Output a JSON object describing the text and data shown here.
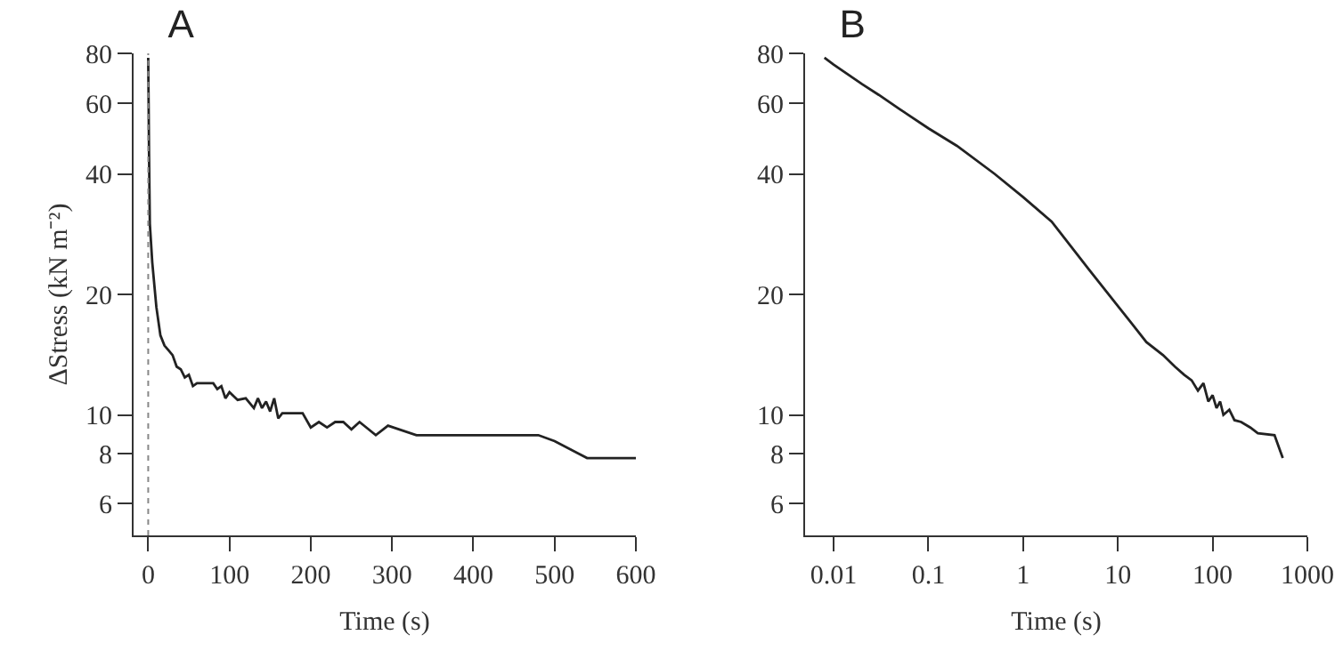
{
  "chart_data": [
    {
      "type": "line",
      "title": "A",
      "xlabel": "Time (s)",
      "ylabel": "ΔStress (kN m⁻²)",
      "log": "y",
      "xlim": [
        -18,
        600
      ],
      "xticks": [
        0,
        100,
        200,
        300,
        400,
        500,
        600
      ],
      "ylim": [
        5,
        80
      ],
      "yticks": [
        6,
        8,
        10,
        20,
        40,
        60,
        80
      ],
      "ref_lines": [
        {
          "axis": "x",
          "value": 0,
          "color": "#888888",
          "line_style": "dotted"
        }
      ],
      "series": [
        {
          "color": "#222222",
          "x": [
            0,
            0.5,
            1,
            2,
            5,
            10,
            15,
            20,
            25,
            30,
            35,
            40,
            45,
            50,
            55,
            60,
            80,
            85,
            90,
            95,
            100,
            110,
            120,
            130,
            135,
            140,
            145,
            150,
            155,
            160,
            165,
            190,
            200,
            210,
            220,
            230,
            240,
            250,
            260,
            280,
            295,
            330,
            480,
            500,
            540,
            600
          ],
          "values": [
            78,
            60,
            45,
            30,
            24,
            18.6,
            15.8,
            14.9,
            14.5,
            14.1,
            13.2,
            13,
            12.4,
            12.6,
            11.8,
            12,
            12,
            11.6,
            11.8,
            11,
            11.4,
            10.9,
            11,
            10.4,
            11,
            10.4,
            10.8,
            10.2,
            11,
            9.8,
            10.1,
            10.1,
            9.3,
            9.6,
            9.3,
            9.6,
            9.6,
            9.2,
            9.6,
            8.9,
            9.4,
            8.9,
            8.9,
            8.6,
            7.8,
            7.8
          ]
        }
      ]
    },
    {
      "type": "line",
      "title": "B",
      "xlabel": "Time (s)",
      "log": "xy",
      "xlim": [
        0.005,
        1000
      ],
      "xticks": [
        0.01,
        0.1,
        1,
        10,
        100,
        1000
      ],
      "ylim": [
        5,
        80
      ],
      "yticks": [
        6,
        8,
        10,
        20,
        40,
        60,
        80
      ],
      "series": [
        {
          "color": "#222222",
          "x": [
            0.008,
            0.01,
            0.02,
            0.03,
            0.05,
            0.1,
            0.2,
            0.5,
            1,
            2,
            5,
            10,
            20,
            30,
            40,
            50,
            60,
            70,
            80,
            90,
            100,
            110,
            120,
            130,
            150,
            170,
            200,
            250,
            300,
            450,
            550
          ],
          "values": [
            78,
            75,
            67,
            63,
            58,
            52,
            47,
            40,
            35,
            30.4,
            23,
            18.7,
            15.2,
            14.1,
            13.2,
            12.6,
            12.2,
            11.5,
            12,
            10.8,
            11.2,
            10.4,
            10.8,
            10,
            10.3,
            9.7,
            9.6,
            9.3,
            9,
            8.9,
            7.8
          ]
        }
      ]
    }
  ]
}
